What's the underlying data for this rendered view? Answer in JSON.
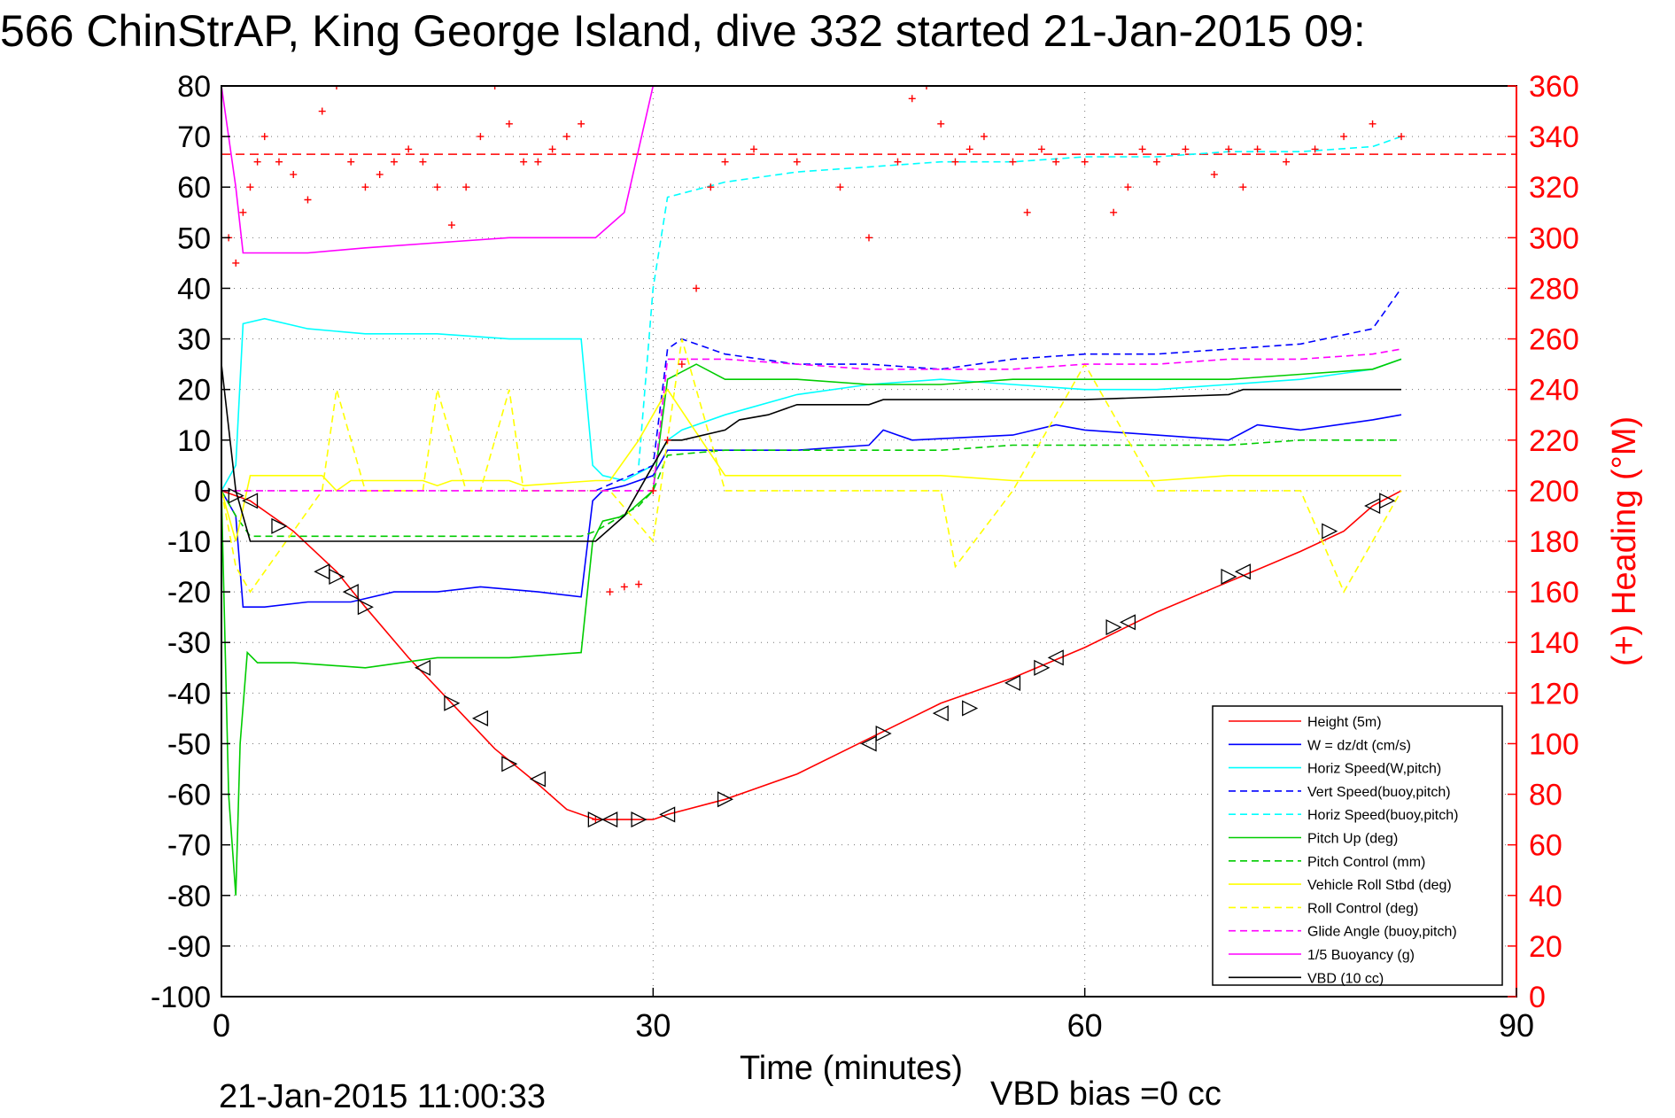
{
  "chart_data": {
    "type": "line",
    "title": "566 ChinStrAP, King George Island, dive 332 started 21-Jan-2015 09:",
    "xlabel": "Time (minutes)",
    "ylabel_right": "(+) Heading (°M)",
    "footer_left": "21-Jan-2015 11:00:33",
    "footer_right": "VBD bias =0 cc",
    "xlim": [
      0,
      90
    ],
    "ylim": [
      -100,
      80
    ],
    "y2lim": [
      0,
      360
    ],
    "x_ticks": [
      0,
      30,
      60,
      90
    ],
    "y_ticks": [
      80,
      70,
      60,
      50,
      40,
      30,
      20,
      10,
      0,
      -10,
      -20,
      -30,
      -40,
      -50,
      -60,
      -70,
      -80,
      -90,
      -100
    ],
    "y2_ticks": [
      360,
      340,
      320,
      300,
      280,
      260,
      240,
      220,
      200,
      180,
      160,
      140,
      120,
      100,
      80,
      60,
      40,
      20,
      0
    ],
    "grid": true,
    "legend_position": "bottom-right",
    "heading_reference": 333,
    "series": [
      {
        "name": "Height (5m)",
        "color": "#ff0000",
        "style": "solid",
        "x": [
          0,
          2,
          5,
          8,
          10,
          13,
          16,
          19,
          22,
          24,
          26,
          27,
          29,
          30,
          31,
          35,
          40,
          45,
          50,
          55,
          60,
          65,
          70,
          75,
          78,
          80,
          82
        ],
        "y": [
          0,
          -2,
          -8,
          -16,
          -23,
          -33,
          -42,
          -51,
          -58,
          -63,
          -65,
          -65,
          -65,
          -65,
          -64,
          -61,
          -56,
          -49,
          -42,
          -37,
          -31,
          -24,
          -18,
          -12,
          -8,
          -3,
          0
        ]
      },
      {
        "name": "W = dz/dt (cm/s)",
        "color": "#0000ff",
        "style": "solid",
        "x": [
          0,
          1,
          1.5,
          3,
          6,
          9,
          12,
          15,
          18,
          22,
          25,
          25.8,
          26.5,
          28,
          30,
          31,
          32,
          35,
          40,
          45,
          46,
          48,
          55,
          58,
          60,
          65,
          70,
          72,
          75,
          80,
          82
        ],
        "y": [
          0,
          -5,
          -23,
          -23,
          -22,
          -22,
          -20,
          -20,
          -19,
          -20,
          -21,
          -2,
          0,
          1,
          3,
          8,
          8,
          8,
          8,
          9,
          12,
          10,
          11,
          13,
          12,
          11,
          10,
          13,
          12,
          14,
          15
        ]
      },
      {
        "name": "Horiz Speed(W,pitch)",
        "color": "#00ffff",
        "style": "solid",
        "x": [
          0,
          1,
          1.5,
          3,
          6,
          10,
          15,
          20,
          25,
          25.8,
          26.5,
          28,
          30,
          31,
          32,
          35,
          40,
          45,
          50,
          55,
          60,
          65,
          70,
          75,
          80,
          82
        ],
        "y": [
          0,
          5,
          33,
          34,
          32,
          31,
          31,
          30,
          30,
          5,
          3,
          2,
          5,
          10,
          12,
          15,
          19,
          21,
          22,
          21,
          20,
          20,
          21,
          22,
          24,
          26
        ]
      },
      {
        "name": "Vert Speed(buoy,pitch)",
        "color": "#0000ff",
        "style": "dashed",
        "x": [
          26,
          30,
          31,
          32,
          35,
          40,
          45,
          50,
          55,
          60,
          65,
          70,
          75,
          80,
          82
        ],
        "y": [
          0,
          5,
          28,
          30,
          27,
          25,
          25,
          24,
          26,
          27,
          27,
          28,
          29,
          32,
          40
        ]
      },
      {
        "name": "Horiz Speed(buoy,pitch)",
        "color": "#00ffff",
        "style": "dashed",
        "x": [
          29,
          30,
          31,
          35,
          40,
          45,
          50,
          55,
          60,
          65,
          70,
          75,
          80,
          82
        ],
        "y": [
          5,
          40,
          58,
          61,
          63,
          64,
          65,
          65,
          66,
          66,
          67,
          67,
          68,
          70
        ]
      },
      {
        "name": "Pitch Up (deg)",
        "color": "#00cc00",
        "style": "solid",
        "x": [
          0,
          0.5,
          1,
          1.3,
          1.8,
          2.5,
          5,
          10,
          15,
          20,
          25,
          25.8,
          26.5,
          28,
          30,
          31,
          33,
          35,
          40,
          45,
          50,
          55,
          60,
          65,
          70,
          75,
          80,
          82
        ],
        "y": [
          0,
          -60,
          -80,
          -50,
          -32,
          -34,
          -34,
          -35,
          -33,
          -33,
          -32,
          -10,
          -6,
          -5,
          0,
          22,
          25,
          22,
          22,
          21,
          21,
          22,
          22,
          22,
          22,
          23,
          24,
          26
        ]
      },
      {
        "name": "Pitch Control (mm)",
        "color": "#00cc00",
        "style": "dashed",
        "x": [
          0,
          1,
          2,
          25,
          26,
          29,
          30,
          31,
          35,
          40,
          45,
          50,
          55,
          60,
          65,
          70,
          75,
          80,
          82
        ],
        "y": [
          0,
          -5,
          -9,
          -9,
          -8,
          -3,
          0,
          7,
          8,
          8,
          8,
          8,
          9,
          9,
          9,
          9,
          10,
          10,
          10
        ]
      },
      {
        "name": "Vehicle Roll Stbd (deg)",
        "color": "#ffff00",
        "style": "solid",
        "x": [
          0,
          1,
          2,
          7,
          8,
          9,
          14,
          15,
          16,
          17,
          20,
          21,
          26,
          27,
          29,
          30,
          31,
          35,
          40,
          45,
          50,
          55,
          60,
          65,
          70,
          75,
          80,
          82
        ],
        "y": [
          0,
          -10,
          3,
          3,
          0,
          2,
          2,
          1,
          2,
          2,
          2,
          1,
          2,
          2,
          10,
          15,
          20,
          3,
          3,
          3,
          3,
          2,
          2,
          2,
          3,
          3,
          3,
          3
        ]
      },
      {
        "name": "Roll Control (deg)",
        "color": "#ffff00",
        "style": "dashed",
        "x": [
          0,
          1,
          2,
          7,
          8,
          10,
          14,
          15,
          17,
          18,
          20,
          21,
          25,
          27,
          30,
          32,
          35,
          40,
          45,
          50,
          51,
          55,
          60,
          65,
          70,
          75,
          78,
          80,
          82
        ],
        "y": [
          0,
          -15,
          -20,
          0,
          20,
          0,
          0,
          20,
          0,
          0,
          20,
          0,
          0,
          0,
          -10,
          30,
          0,
          0,
          0,
          0,
          -15,
          0,
          25,
          0,
          0,
          0,
          -20,
          -10,
          0
        ]
      },
      {
        "name": "Glide Angle (buoy,pitch)",
        "color": "#ff00ff",
        "style": "dashed",
        "x": [
          0,
          29,
          30,
          31,
          35,
          40,
          45,
          50,
          55,
          60,
          65,
          70,
          75,
          80,
          82
        ],
        "y": [
          0,
          0,
          0,
          26,
          26,
          25,
          24,
          24,
          24,
          25,
          25,
          26,
          26,
          27,
          28
        ]
      },
      {
        "name": "1/5 Buoyancy (g)",
        "color": "#ff00ff",
        "style": "solid",
        "x": [
          0,
          1,
          1.5,
          6,
          10,
          15,
          20,
          25,
          26,
          28,
          30
        ],
        "y": [
          80,
          60,
          47,
          47,
          48,
          49,
          50,
          50,
          50,
          55,
          80
        ]
      },
      {
        "name": "VBD (10 cc)",
        "color": "#000000",
        "style": "solid",
        "x": [
          0,
          1,
          2,
          25,
          26,
          28,
          30,
          31,
          32,
          35,
          36,
          38,
          40,
          45,
          46,
          50,
          55,
          60,
          70,
          71,
          82
        ],
        "y": [
          25,
          0,
          -10,
          -10,
          -10,
          -5,
          5,
          10,
          10,
          12,
          14,
          15,
          17,
          17,
          18,
          18,
          18,
          18,
          19,
          20,
          20
        ]
      }
    ],
    "heading_points": {
      "name": "Heading",
      "color": "#ff0000",
      "x": [
        0,
        0.5,
        1,
        1.5,
        2,
        2.5,
        3,
        4,
        5,
        6,
        7,
        8,
        9,
        10,
        11,
        12,
        13,
        14,
        15,
        16,
        17,
        18,
        19,
        20,
        21,
        22,
        23,
        24,
        25,
        26,
        27,
        28,
        29,
        30,
        31,
        32,
        33,
        34,
        35,
        37,
        40,
        43,
        45,
        47,
        48,
        49,
        50,
        51,
        52,
        53,
        55,
        56,
        57,
        58,
        60,
        62,
        63,
        64,
        65,
        67,
        69,
        70,
        71,
        72,
        74,
        76,
        78,
        80,
        82
      ],
      "y": [
        340,
        300,
        290,
        310,
        320,
        330,
        340,
        330,
        325,
        315,
        350,
        360,
        330,
        320,
        325,
        330,
        335,
        330,
        320,
        305,
        320,
        340,
        360,
        345,
        330,
        330,
        335,
        340,
        345,
        70,
        160,
        162,
        163,
        200,
        220,
        250,
        280,
        320,
        330,
        335,
        330,
        320,
        300,
        330,
        355,
        360,
        345,
        330,
        335,
        340,
        330,
        310,
        335,
        330,
        330,
        310,
        320,
        335,
        330,
        335,
        325,
        335,
        320,
        335,
        330,
        335,
        340,
        345,
        340
      ]
    },
    "marker_points": {
      "x": [
        1,
        2,
        4,
        7,
        8,
        9,
        10,
        14,
        16,
        18,
        20,
        22,
        26,
        27,
        29,
        31,
        35,
        45,
        46,
        50,
        52,
        55,
        57,
        58,
        62,
        63,
        70,
        71,
        77,
        80,
        81
      ],
      "y": [
        -1,
        -2,
        -7,
        -16,
        -17,
        -20,
        -23,
        -35,
        -42,
        -45,
        -54,
        -57,
        -65,
        -65,
        -65,
        -64,
        -61,
        -50,
        -48,
        -44,
        -43,
        -38,
        -35,
        -33,
        -27,
        -26,
        -17,
        -16,
        -8,
        -3,
        -2
      ]
    }
  }
}
